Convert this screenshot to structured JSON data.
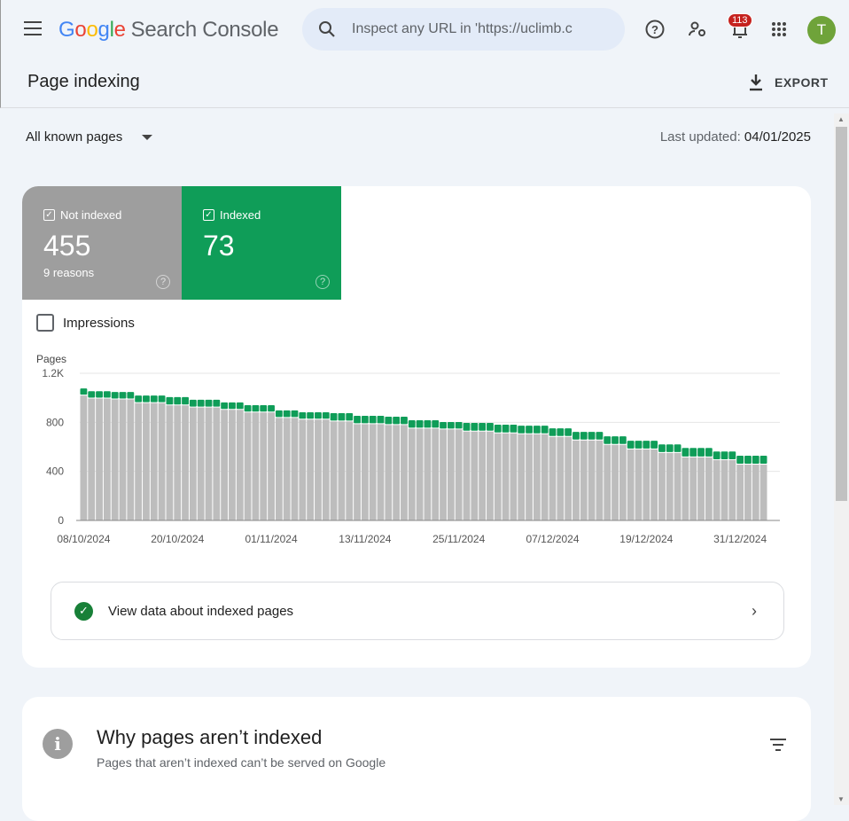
{
  "app": {
    "logo_google": "Google",
    "logo_product": "Search Console",
    "search_placeholder": "Inspect any URL in 'https://uclimb.c",
    "notifications": "113",
    "avatar_initial": "T"
  },
  "page": {
    "title": "Page indexing",
    "export": "EXPORT",
    "filter": "All known pages",
    "updated_label": "Last updated:",
    "updated_value": "04/01/2025"
  },
  "summary": {
    "not_indexed": {
      "label": "Not indexed",
      "value": "455",
      "sub": "9 reasons",
      "color": "#9e9e9e"
    },
    "indexed": {
      "label": "Indexed",
      "value": "73",
      "color": "#0f9d58"
    },
    "impressions_label": "Impressions"
  },
  "chart_data": {
    "type": "bar",
    "stacked": true,
    "ylabel": "Pages",
    "ylim": [
      0,
      1200
    ],
    "yticks": [
      "0",
      "400",
      "800",
      "1.2K"
    ],
    "ytick_values": [
      0,
      400,
      800,
      1200
    ],
    "xtick_labels": [
      "08/10/2024",
      "20/10/2024",
      "01/11/2024",
      "13/11/2024",
      "25/11/2024",
      "07/12/2024",
      "19/12/2024",
      "31/12/2024"
    ],
    "xtick_every_n_days": 12,
    "series_colors": {
      "not_indexed": "#bdbdbd",
      "indexed": "#0f9d58"
    },
    "runs": [
      {
        "days": 1,
        "not_indexed": 1018,
        "indexed": 58
      },
      {
        "days": 3,
        "not_indexed": 994,
        "indexed": 60
      },
      {
        "days": 3,
        "not_indexed": 987,
        "indexed": 60
      },
      {
        "days": 4,
        "not_indexed": 957,
        "indexed": 61
      },
      {
        "days": 3,
        "not_indexed": 938,
        "indexed": 68
      },
      {
        "days": 4,
        "not_indexed": 921,
        "indexed": 63
      },
      {
        "days": 3,
        "not_indexed": 902,
        "indexed": 60
      },
      {
        "days": 4,
        "not_indexed": 880,
        "indexed": 60
      },
      {
        "days": 3,
        "not_indexed": 836,
        "indexed": 61
      },
      {
        "days": 4,
        "not_indexed": 822,
        "indexed": 60
      },
      {
        "days": 3,
        "not_indexed": 807,
        "indexed": 68
      },
      {
        "days": 4,
        "not_indexed": 785,
        "indexed": 68
      },
      {
        "days": 3,
        "not_indexed": 778,
        "indexed": 68
      },
      {
        "days": 4,
        "not_indexed": 749,
        "indexed": 68
      },
      {
        "days": 3,
        "not_indexed": 742,
        "indexed": 60
      },
      {
        "days": 4,
        "not_indexed": 725,
        "indexed": 70
      },
      {
        "days": 3,
        "not_indexed": 710,
        "indexed": 71
      },
      {
        "days": 4,
        "not_indexed": 703,
        "indexed": 70
      },
      {
        "days": 3,
        "not_indexed": 681,
        "indexed": 70
      },
      {
        "days": 4,
        "not_indexed": 652,
        "indexed": 70
      },
      {
        "days": 3,
        "not_indexed": 616,
        "indexed": 70
      },
      {
        "days": 4,
        "not_indexed": 579,
        "indexed": 71
      },
      {
        "days": 3,
        "not_indexed": 550,
        "indexed": 70
      },
      {
        "days": 4,
        "not_indexed": 514,
        "indexed": 77
      },
      {
        "days": 3,
        "not_indexed": 492,
        "indexed": 70
      },
      {
        "days": 4,
        "not_indexed": 455,
        "indexed": 73
      }
    ]
  },
  "view_row": {
    "label": "View data about indexed pages"
  },
  "why": {
    "title": "Why pages aren’t indexed",
    "subtitle": "Pages that aren’t indexed can’t be served on Google"
  }
}
